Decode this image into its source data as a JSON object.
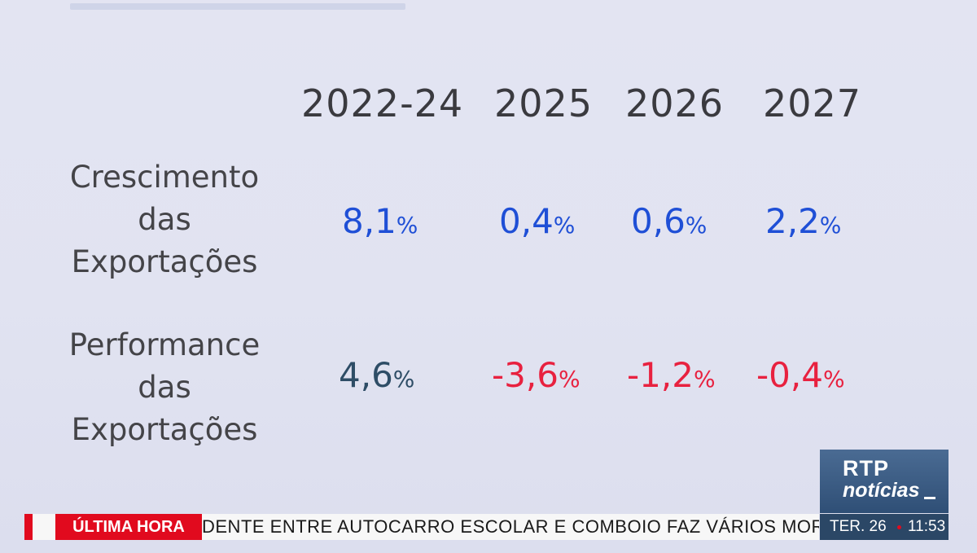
{
  "table": {
    "years": [
      "2022-24",
      "2025",
      "2026",
      "2027"
    ],
    "rows": [
      {
        "label_lines": [
          "Crescimento",
          "das",
          "Exportações"
        ],
        "values": [
          "8,1",
          "0,4",
          "0,6",
          "2,2"
        ],
        "unit": "%"
      },
      {
        "label_lines": [
          "Performance",
          "das",
          "Exportações"
        ],
        "values": [
          "4,6",
          "-3,6",
          "-1,2",
          "-0,4"
        ],
        "unit": "%"
      }
    ]
  },
  "colors": {
    "positive_value": "#1f4fd6",
    "neutral_value": "#2e4d66",
    "negative_value": "#e8213f",
    "ticker_red": "#e10a1e",
    "logo_blue": "#2f4f76"
  },
  "broadcast": {
    "logo": {
      "line1": "RTP",
      "line2": "notícias"
    },
    "ticker": {
      "tag": "ÚLTIMA HORA",
      "headline": "DENTE ENTRE AUTOCARRO ESCOLAR E COMBOIO FAZ VÁRIOS MORTOS NA BÉ"
    },
    "clock": {
      "day": "TER. 26",
      "time": "11:53"
    }
  }
}
